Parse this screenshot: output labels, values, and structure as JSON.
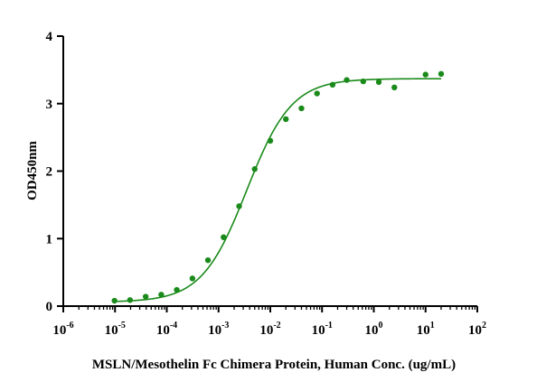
{
  "chart_data": {
    "type": "scatter",
    "xlabel": "MSLN/Mesothelin Fc Chimera Protein, Human Conc. (ug/mL)",
    "ylabel": "OD450nm",
    "x_scale": "log",
    "xlim": [
      1e-06,
      100
    ],
    "ylim": [
      0,
      4
    ],
    "x_ticks": [
      {
        "base": "10",
        "exp": "-6",
        "value": 1e-06
      },
      {
        "base": "10",
        "exp": "-5",
        "value": 1e-05
      },
      {
        "base": "10",
        "exp": "-4",
        "value": 0.0001
      },
      {
        "base": "10",
        "exp": "-3",
        "value": 0.001
      },
      {
        "base": "10",
        "exp": "-2",
        "value": 0.01
      },
      {
        "base": "10",
        "exp": "-1",
        "value": 0.1
      },
      {
        "base": "10",
        "exp": "0",
        "value": 1
      },
      {
        "base": "10",
        "exp": "1",
        "value": 10
      },
      {
        "base": "10",
        "exp": "2",
        "value": 100
      }
    ],
    "y_ticks": [
      "0",
      "1",
      "2",
      "3",
      "4"
    ],
    "grid": false,
    "legend": "none",
    "color": "#1a8a1a",
    "series": [
      {
        "points": [
          {
            "x": 9.77e-06,
            "y": 0.08
          },
          {
            "x": 1.95e-05,
            "y": 0.09
          },
          {
            "x": 3.91e-05,
            "y": 0.14
          },
          {
            "x": 7.81e-05,
            "y": 0.17
          },
          {
            "x": 0.000156,
            "y": 0.24
          },
          {
            "x": 0.000313,
            "y": 0.41
          },
          {
            "x": 0.000625,
            "y": 0.68
          },
          {
            "x": 0.00125,
            "y": 1.02
          },
          {
            "x": 0.0025,
            "y": 1.48
          },
          {
            "x": 0.005,
            "y": 2.03
          },
          {
            "x": 0.01,
            "y": 2.45
          },
          {
            "x": 0.02,
            "y": 2.77
          },
          {
            "x": 0.04,
            "y": 2.93
          },
          {
            "x": 0.08,
            "y": 3.15
          },
          {
            "x": 0.16,
            "y": 3.28
          },
          {
            "x": 0.3,
            "y": 3.35
          },
          {
            "x": 0.625,
            "y": 3.33
          },
          {
            "x": 1.25,
            "y": 3.32
          },
          {
            "x": 2.5,
            "y": 3.24
          },
          {
            "x": 10,
            "y": 3.43
          },
          {
            "x": 20,
            "y": 3.44
          }
        ],
        "fit": {
          "bottom": 0.06,
          "top": 3.37,
          "ec50": 0.0035,
          "hill": 1.0,
          "x_range": [
            9.77e-06,
            20
          ]
        }
      }
    ]
  }
}
